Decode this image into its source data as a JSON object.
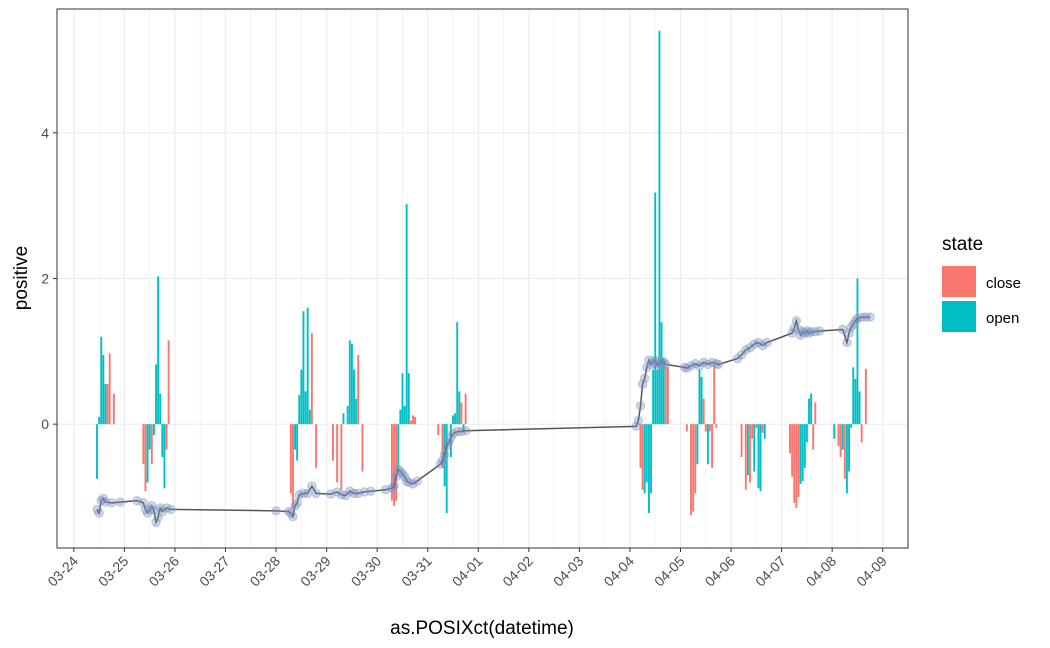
{
  "chart_data": {
    "type": "bar",
    "xlabel": "as.POSIXct(datetime)",
    "ylabel": "positive",
    "x_axis": {
      "type": "date",
      "range": [
        "2021-03-23T16:00",
        "2021-04-09T12:00"
      ],
      "ticks": [
        "2021-03-24",
        "2021-03-25",
        "2021-03-26",
        "2021-03-27",
        "2021-03-28",
        "2021-03-29",
        "2021-03-30",
        "2021-03-31",
        "2021-04-01",
        "2021-04-02",
        "2021-04-03",
        "2021-04-04",
        "2021-04-05",
        "2021-04-06",
        "2021-04-07",
        "2021-04-08",
        "2021-04-09"
      ],
      "tick_labels": [
        "03-24",
        "03-25",
        "03-26",
        "03-27",
        "03-28",
        "03-29",
        "03-30",
        "03-31",
        "04-01",
        "04-02",
        "04-03",
        "04-04",
        "04-05",
        "04-06",
        "04-07",
        "04-08",
        "04-09"
      ]
    },
    "y_axis": {
      "range": [
        -1.7,
        5.7
      ],
      "ticks": [
        0,
        2,
        4
      ],
      "tick_labels": [
        "0",
        "2",
        "4"
      ]
    },
    "grid": true,
    "legend": {
      "title": "state",
      "placement": "right",
      "entries": [
        {
          "key": "close",
          "label": "close",
          "color": "#F8766D"
        },
        {
          "key": "open",
          "label": "open",
          "color": "#00BFC4"
        }
      ]
    },
    "bars": [
      [
        "2021-03-24T11:00",
        -0.75,
        "open"
      ],
      [
        "2021-03-24T12:00",
        0.1,
        "open"
      ],
      [
        "2021-03-24T13:00",
        1.2,
        "open"
      ],
      [
        "2021-03-24T14:00",
        0.95,
        "open"
      ],
      [
        "2021-03-24T15:00",
        0.55,
        "open"
      ],
      [
        "2021-03-24T16:00",
        0.55,
        "close"
      ],
      [
        "2021-03-24T17:00",
        0.97,
        "close"
      ],
      [
        "2021-03-24T19:00",
        0.42,
        "close"
      ],
      [
        "2021-03-25T09:00",
        -0.55,
        "close"
      ],
      [
        "2021-03-25T10:00",
        -0.92,
        "close"
      ],
      [
        "2021-03-25T11:00",
        -0.8,
        "open"
      ],
      [
        "2021-03-25T12:00",
        -0.35,
        "open"
      ],
      [
        "2021-03-25T13:00",
        -0.55,
        "close"
      ],
      [
        "2021-03-25T14:00",
        -0.15,
        "open"
      ],
      [
        "2021-03-25T15:00",
        0.82,
        "open"
      ],
      [
        "2021-03-25T16:00",
        2.03,
        "open"
      ],
      [
        "2021-03-25T17:00",
        0.42,
        "open"
      ],
      [
        "2021-03-25T18:00",
        -0.45,
        "open"
      ],
      [
        "2021-03-25T19:00",
        -0.88,
        "open"
      ],
      [
        "2021-03-25T20:00",
        -0.35,
        "close"
      ],
      [
        "2021-03-25T21:00",
        1.15,
        "close"
      ],
      [
        "2021-03-28T07:00",
        -0.95,
        "close"
      ],
      [
        "2021-03-28T08:00",
        -1.15,
        "close"
      ],
      [
        "2021-03-28T09:00",
        -0.35,
        "open"
      ],
      [
        "2021-03-28T10:00",
        -0.5,
        "open"
      ],
      [
        "2021-03-28T11:00",
        0.4,
        "open"
      ],
      [
        "2021-03-28T12:00",
        0.75,
        "open"
      ],
      [
        "2021-03-28T13:00",
        1.55,
        "open"
      ],
      [
        "2021-03-28T14:00",
        0.45,
        "open"
      ],
      [
        "2021-03-28T15:00",
        1.6,
        "open"
      ],
      [
        "2021-03-28T16:00",
        0.2,
        "open"
      ],
      [
        "2021-03-28T17:00",
        1.25,
        "close"
      ],
      [
        "2021-03-28T19:00",
        -0.6,
        "close"
      ],
      [
        "2021-03-29T03:00",
        -0.5,
        "close"
      ],
      [
        "2021-03-29T05:00",
        -0.8,
        "close"
      ],
      [
        "2021-03-29T07:00",
        -0.9,
        "close"
      ],
      [
        "2021-03-29T08:00",
        0.15,
        "open"
      ],
      [
        "2021-03-29T10:00",
        0.25,
        "open"
      ],
      [
        "2021-03-29T11:00",
        1.15,
        "open"
      ],
      [
        "2021-03-29T12:00",
        1.1,
        "open"
      ],
      [
        "2021-03-29T13:00",
        0.75,
        "open"
      ],
      [
        "2021-03-29T14:00",
        0.35,
        "open"
      ],
      [
        "2021-03-29T15:00",
        0.95,
        "close"
      ],
      [
        "2021-03-29T17:00",
        -0.65,
        "close"
      ],
      [
        "2021-03-30T07:00",
        -1.05,
        "close"
      ],
      [
        "2021-03-30T08:00",
        -1.12,
        "close"
      ],
      [
        "2021-03-30T09:00",
        -1.05,
        "close"
      ],
      [
        "2021-03-30T10:00",
        -0.65,
        "open"
      ],
      [
        "2021-03-30T11:00",
        0.2,
        "open"
      ],
      [
        "2021-03-30T12:00",
        0.7,
        "open"
      ],
      [
        "2021-03-30T13:00",
        0.25,
        "open"
      ],
      [
        "2021-03-30T14:00",
        3.02,
        "open"
      ],
      [
        "2021-03-30T15:00",
        0.7,
        "open"
      ],
      [
        "2021-03-30T16:00",
        0.05,
        "close"
      ],
      [
        "2021-03-30T17:00",
        0.12,
        "close"
      ],
      [
        "2021-03-30T18:00",
        0.1,
        "close"
      ],
      [
        "2021-03-31T05:00",
        -0.15,
        "close"
      ],
      [
        "2021-03-31T07:00",
        -0.6,
        "close"
      ],
      [
        "2021-03-31T08:00",
        -0.85,
        "open"
      ],
      [
        "2021-03-31T09:00",
        -1.22,
        "open"
      ],
      [
        "2021-03-31T11:00",
        -0.45,
        "open"
      ],
      [
        "2021-03-31T12:00",
        0.12,
        "open"
      ],
      [
        "2021-03-31T13:00",
        0.15,
        "open"
      ],
      [
        "2021-03-31T14:00",
        1.4,
        "open"
      ],
      [
        "2021-03-31T15:00",
        0.45,
        "open"
      ],
      [
        "2021-03-31T16:00",
        0.3,
        "close"
      ],
      [
        "2021-03-31T17:00",
        -0.1,
        "open"
      ],
      [
        "2021-03-31T18:00",
        0.42,
        "close"
      ],
      [
        "2021-04-04T05:00",
        -0.6,
        "close"
      ],
      [
        "2021-04-04T06:00",
        -0.9,
        "close"
      ],
      [
        "2021-04-04T07:00",
        -0.95,
        "open"
      ],
      [
        "2021-04-04T08:00",
        -0.8,
        "open"
      ],
      [
        "2021-04-04T09:00",
        -1.22,
        "open"
      ],
      [
        "2021-04-04T10:00",
        -0.95,
        "open"
      ],
      [
        "2021-04-04T11:00",
        0.75,
        "open"
      ],
      [
        "2021-04-04T12:00",
        3.18,
        "open"
      ],
      [
        "2021-04-04T13:00",
        0.75,
        "open"
      ],
      [
        "2021-04-04T14:00",
        5.4,
        "open"
      ],
      [
        "2021-04-04T15:00",
        1.4,
        "open"
      ],
      [
        "2021-04-04T16:00",
        0.9,
        "open"
      ],
      [
        "2021-04-04T17:00",
        0.8,
        "close"
      ],
      [
        "2021-04-04T18:00",
        0.78,
        "close"
      ],
      [
        "2021-04-05T03:00",
        -0.1,
        "close"
      ],
      [
        "2021-04-05T05:00",
        -1.25,
        "close"
      ],
      [
        "2021-04-05T06:00",
        -1.2,
        "close"
      ],
      [
        "2021-04-05T07:00",
        -0.95,
        "close"
      ],
      [
        "2021-04-05T08:00",
        -0.55,
        "open"
      ],
      [
        "2021-04-05T09:00",
        0.75,
        "open"
      ],
      [
        "2021-04-05T10:00",
        0.65,
        "open"
      ],
      [
        "2021-04-05T11:00",
        0.35,
        "close"
      ],
      [
        "2021-04-05T12:00",
        -0.1,
        "close"
      ],
      [
        "2021-04-05T13:00",
        -0.55,
        "open"
      ],
      [
        "2021-04-05T14:00",
        -0.1,
        "close"
      ],
      [
        "2021-04-05T15:00",
        -0.6,
        "close"
      ],
      [
        "2021-04-05T16:00",
        0.8,
        "close"
      ],
      [
        "2021-04-05T17:00",
        -0.05,
        "close"
      ],
      [
        "2021-04-06T05:00",
        -0.45,
        "close"
      ],
      [
        "2021-04-06T07:00",
        -0.9,
        "close"
      ],
      [
        "2021-04-06T08:00",
        -0.7,
        "open"
      ],
      [
        "2021-04-06T09:00",
        -0.8,
        "close"
      ],
      [
        "2021-04-06T10:00",
        -0.2,
        "close"
      ],
      [
        "2021-04-06T11:00",
        -0.65,
        "open"
      ],
      [
        "2021-04-06T12:00",
        -0.05,
        "close"
      ],
      [
        "2021-04-06T13:00",
        -0.88,
        "open"
      ],
      [
        "2021-04-06T14:00",
        -0.92,
        "open"
      ],
      [
        "2021-04-06T15:00",
        -0.12,
        "close"
      ],
      [
        "2021-04-06T16:00",
        -0.2,
        "open"
      ],
      [
        "2021-04-07T04:00",
        -0.4,
        "close"
      ],
      [
        "2021-04-07T05:00",
        -0.72,
        "close"
      ],
      [
        "2021-04-07T06:00",
        -1.08,
        "close"
      ],
      [
        "2021-04-07T07:00",
        -1.15,
        "close"
      ],
      [
        "2021-04-07T08:00",
        -1.0,
        "close"
      ],
      [
        "2021-04-07T09:00",
        -0.82,
        "open"
      ],
      [
        "2021-04-07T10:00",
        -0.78,
        "open"
      ],
      [
        "2021-04-07T11:00",
        -0.6,
        "open"
      ],
      [
        "2021-04-07T12:00",
        -0.25,
        "open"
      ],
      [
        "2021-04-07T13:00",
        0.35,
        "open"
      ],
      [
        "2021-04-07T14:00",
        0.42,
        "open"
      ],
      [
        "2021-04-07T15:00",
        -0.35,
        "close"
      ],
      [
        "2021-04-07T16:00",
        0.3,
        "close"
      ],
      [
        "2021-04-08T01:00",
        -0.2,
        "open"
      ],
      [
        "2021-04-08T03:00",
        -0.3,
        "close"
      ],
      [
        "2021-04-08T04:00",
        -0.45,
        "close"
      ],
      [
        "2021-04-08T05:00",
        -0.35,
        "open"
      ],
      [
        "2021-04-08T06:00",
        -0.75,
        "close"
      ],
      [
        "2021-04-08T07:00",
        -0.95,
        "open"
      ],
      [
        "2021-04-08T08:00",
        -0.65,
        "open"
      ],
      [
        "2021-04-08T09:00",
        -0.05,
        "open"
      ],
      [
        "2021-04-08T10:00",
        0.78,
        "open"
      ],
      [
        "2021-04-08T11:00",
        0.62,
        "open"
      ],
      [
        "2021-04-08T12:00",
        2.0,
        "open"
      ],
      [
        "2021-04-08T13:00",
        0.45,
        "open"
      ],
      [
        "2021-04-08T14:00",
        -0.25,
        "close"
      ],
      [
        "2021-04-08T16:00",
        0.76,
        "close"
      ]
    ],
    "line": [
      [
        "2021-03-24T11:00",
        -1.17
      ],
      [
        "2021-03-24T12:00",
        -1.22
      ],
      [
        "2021-03-24T13:00",
        -1.05
      ],
      [
        "2021-03-24T14:00",
        -1.02
      ],
      [
        "2021-03-24T15:00",
        -1.07
      ],
      [
        "2021-03-24T18:00",
        -1.08
      ],
      [
        "2021-03-24T22:00",
        -1.07
      ],
      [
        "2021-03-25T06:00",
        -1.05
      ],
      [
        "2021-03-25T09:00",
        -1.08
      ],
      [
        "2021-03-25T10:00",
        -1.17
      ],
      [
        "2021-03-25T11:00",
        -1.22
      ],
      [
        "2021-03-25T12:00",
        -1.17
      ],
      [
        "2021-03-25T13:00",
        -1.12
      ],
      [
        "2021-03-25T14:00",
        -1.18
      ],
      [
        "2021-03-25T15:00",
        -1.35
      ],
      [
        "2021-03-25T16:00",
        -1.28
      ],
      [
        "2021-03-25T17:00",
        -1.15
      ],
      [
        "2021-03-25T18:00",
        -1.2
      ],
      [
        "2021-03-25T20:00",
        -1.15
      ],
      [
        "2021-03-25T22:00",
        -1.17
      ],
      [
        "2021-03-28T00:00",
        -1.19
      ],
      [
        "2021-03-28T06:00",
        -1.2
      ],
      [
        "2021-03-28T07:00",
        -1.22
      ],
      [
        "2021-03-28T08:00",
        -1.27
      ],
      [
        "2021-03-28T09:00",
        -1.12
      ],
      [
        "2021-03-28T10:00",
        -1.08
      ],
      [
        "2021-03-28T11:00",
        -0.97
      ],
      [
        "2021-03-28T13:00",
        -0.95
      ],
      [
        "2021-03-28T15:00",
        -0.95
      ],
      [
        "2021-03-28T17:00",
        -0.85
      ],
      [
        "2021-03-28T19:00",
        -0.95
      ],
      [
        "2021-03-29T02:00",
        -0.96
      ],
      [
        "2021-03-29T05:00",
        -0.93
      ],
      [
        "2021-03-29T07:00",
        -0.97
      ],
      [
        "2021-03-29T09:00",
        -0.98
      ],
      [
        "2021-03-29T11:00",
        -0.92
      ],
      [
        "2021-03-29T13:00",
        -0.95
      ],
      [
        "2021-03-29T15:00",
        -0.95
      ],
      [
        "2021-03-29T18:00",
        -0.93
      ],
      [
        "2021-03-29T21:00",
        -0.92
      ],
      [
        "2021-03-30T04:00",
        -0.9
      ],
      [
        "2021-03-30T07:00",
        -0.88
      ],
      [
        "2021-03-30T08:00",
        -0.85
      ],
      [
        "2021-03-30T09:00",
        -0.72
      ],
      [
        "2021-03-30T10:00",
        -0.62
      ],
      [
        "2021-03-30T11:00",
        -0.65
      ],
      [
        "2021-03-30T12:00",
        -0.68
      ],
      [
        "2021-03-30T13:00",
        -0.72
      ],
      [
        "2021-03-30T14:00",
        -0.78
      ],
      [
        "2021-03-30T15:00",
        -0.8
      ],
      [
        "2021-03-30T17:00",
        -0.82
      ],
      [
        "2021-03-30T19:00",
        -0.78
      ],
      [
        "2021-03-31T06:00",
        -0.55
      ],
      [
        "2021-03-31T07:00",
        -0.5
      ],
      [
        "2021-03-31T08:00",
        -0.42
      ],
      [
        "2021-03-31T09:00",
        -0.3
      ],
      [
        "2021-03-31T10:00",
        -0.25
      ],
      [
        "2021-03-31T11:00",
        -0.18
      ],
      [
        "2021-03-31T12:00",
        -0.13
      ],
      [
        "2021-03-31T14:00",
        -0.1
      ],
      [
        "2021-03-31T16:00",
        -0.1
      ],
      [
        "2021-03-31T18:00",
        -0.09
      ],
      [
        "2021-04-04T03:00",
        -0.03
      ],
      [
        "2021-04-04T04:00",
        0.05
      ],
      [
        "2021-04-04T05:00",
        0.25
      ],
      [
        "2021-04-04T06:00",
        0.55
      ],
      [
        "2021-04-04T07:00",
        0.63
      ],
      [
        "2021-04-04T08:00",
        0.78
      ],
      [
        "2021-04-04T09:00",
        0.88
      ],
      [
        "2021-04-04T10:00",
        0.82
      ],
      [
        "2021-04-04T11:00",
        0.85
      ],
      [
        "2021-04-04T12:00",
        0.88
      ],
      [
        "2021-04-04T13:00",
        0.8
      ],
      [
        "2021-04-04T14:00",
        0.85
      ],
      [
        "2021-04-04T15:00",
        0.85
      ],
      [
        "2021-04-04T16:00",
        0.86
      ],
      [
        "2021-04-04T17:00",
        0.82
      ],
      [
        "2021-04-05T02:00",
        0.78
      ],
      [
        "2021-04-05T03:00",
        0.77
      ],
      [
        "2021-04-05T05:00",
        0.8
      ],
      [
        "2021-04-05T07:00",
        0.83
      ],
      [
        "2021-04-05T09:00",
        0.8
      ],
      [
        "2021-04-05T11:00",
        0.85
      ],
      [
        "2021-04-05T13:00",
        0.82
      ],
      [
        "2021-04-05T15:00",
        0.85
      ],
      [
        "2021-04-05T17:00",
        0.83
      ],
      [
        "2021-04-05T18:00",
        0.82
      ],
      [
        "2021-04-06T03:00",
        0.9
      ],
      [
        "2021-04-06T05:00",
        0.95
      ],
      [
        "2021-04-06T07:00",
        1.02
      ],
      [
        "2021-04-06T09:00",
        1.05
      ],
      [
        "2021-04-06T11:00",
        1.1
      ],
      [
        "2021-04-06T13:00",
        1.12
      ],
      [
        "2021-04-06T15:00",
        1.08
      ],
      [
        "2021-04-06T17:00",
        1.12
      ],
      [
        "2021-04-07T05:00",
        1.25
      ],
      [
        "2021-04-07T06:00",
        1.32
      ],
      [
        "2021-04-07T07:00",
        1.42
      ],
      [
        "2021-04-07T08:00",
        1.3
      ],
      [
        "2021-04-07T09:00",
        1.22
      ],
      [
        "2021-04-07T10:00",
        1.27
      ],
      [
        "2021-04-07T11:00",
        1.25
      ],
      [
        "2021-04-07T12:00",
        1.28
      ],
      [
        "2021-04-07T13:00",
        1.25
      ],
      [
        "2021-04-07T14:00",
        1.27
      ],
      [
        "2021-04-07T16:00",
        1.27
      ],
      [
        "2021-04-07T18:00",
        1.28
      ],
      [
        "2021-04-08T05:00",
        1.3
      ],
      [
        "2021-04-08T07:00",
        1.12
      ],
      [
        "2021-04-08T08:00",
        1.25
      ],
      [
        "2021-04-08T09:00",
        1.33
      ],
      [
        "2021-04-08T10:00",
        1.37
      ],
      [
        "2021-04-08T11:00",
        1.42
      ],
      [
        "2021-04-08T12:00",
        1.45
      ],
      [
        "2021-04-08T14:00",
        1.47
      ],
      [
        "2021-04-08T16:00",
        1.47
      ],
      [
        "2021-04-08T18:00",
        1.47
      ]
    ]
  }
}
